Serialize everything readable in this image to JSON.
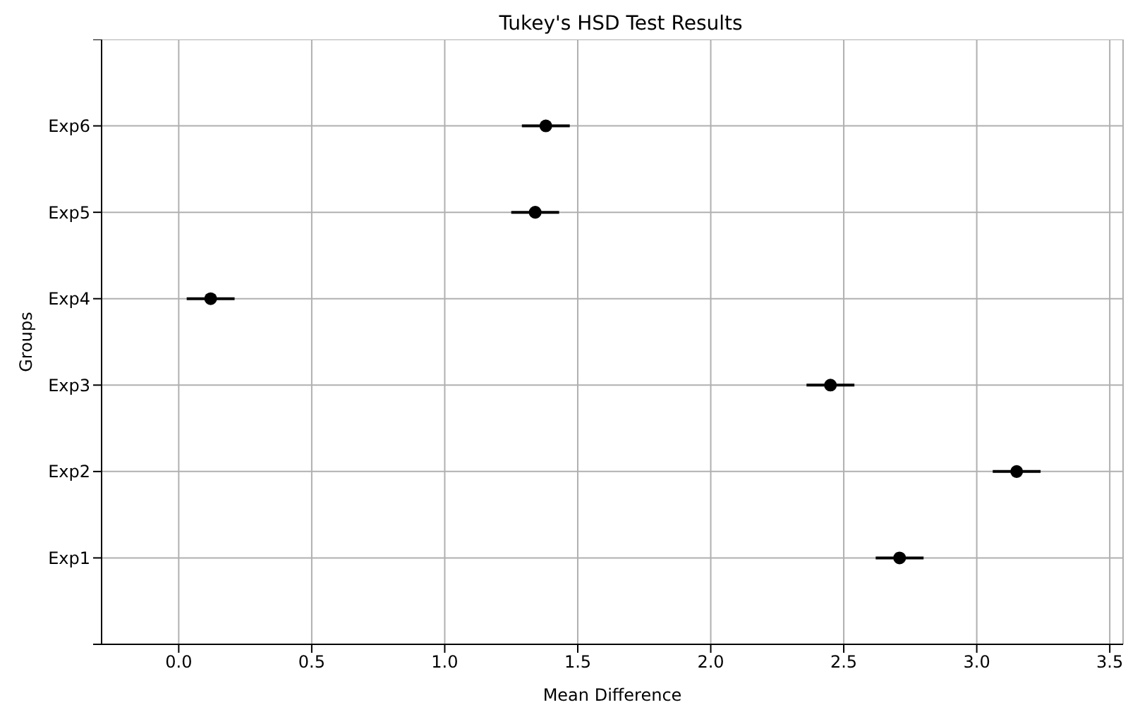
{
  "chart_data": {
    "type": "scatter",
    "orientation": "horizontal",
    "title": "Tukey's HSD Test Results",
    "xlabel": "Mean Difference",
    "ylabel": "Groups",
    "categories": [
      "Exp6",
      "Exp5",
      "Exp4",
      "Exp3",
      "Exp2",
      "Exp1"
    ],
    "values": [
      1.38,
      1.34,
      0.12,
      2.45,
      3.15,
      2.71
    ],
    "errors": [
      0.09,
      0.09,
      0.09,
      0.09,
      0.09,
      0.09
    ],
    "color": "#000000",
    "marker": "circle",
    "grid": true,
    "xlim": [
      -0.29,
      3.55
    ],
    "xticks": [
      {
        "value": 0,
        "label": "0.0"
      },
      0.5,
      {
        "value": 1,
        "label": "1.0"
      },
      1.5,
      {
        "value": 2,
        "label": "2.0"
      },
      2.5,
      {
        "value": 3,
        "label": "3.0"
      },
      3.5
    ]
  }
}
